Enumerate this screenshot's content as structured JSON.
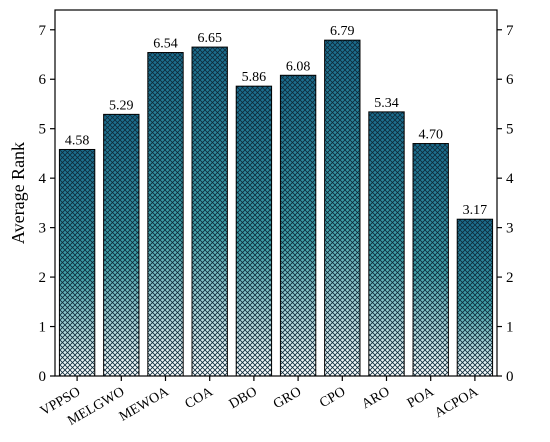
{
  "chart_data": {
    "type": "bar",
    "title": "",
    "xlabel": "",
    "ylabel": "Average Rank",
    "categories": [
      "VPPSO",
      "MELGWO",
      "MEWOA",
      "COA",
      "DBO",
      "GRO",
      "CPO",
      "ARO",
      "POA",
      "ACPOA"
    ],
    "values": [
      4.58,
      5.29,
      6.54,
      6.65,
      5.86,
      6.08,
      6.79,
      5.34,
      4.7,
      3.17
    ],
    "value_labels": [
      "4.58",
      "5.29",
      "6.54",
      "6.65",
      "5.86",
      "6.08",
      "6.79",
      "5.34",
      "4.70",
      "3.17"
    ],
    "ylim": [
      0,
      7.4
    ],
    "yticks": [
      0,
      1,
      2,
      3,
      4,
      5,
      6,
      7
    ],
    "ytick_labels": [
      "0",
      "1",
      "2",
      "3",
      "4",
      "5",
      "6",
      "7"
    ],
    "right_axis_mirror": true,
    "grid": false,
    "legend": "none",
    "bar_fill": "cross-hatch gradient",
    "colors": {
      "bar_top": "#1a6b8c",
      "bar_mid": "#3fa0a8",
      "bar_bottom": "#ffffff",
      "hatch": "#0d2a3a",
      "bar_edge": "#000000"
    }
  }
}
